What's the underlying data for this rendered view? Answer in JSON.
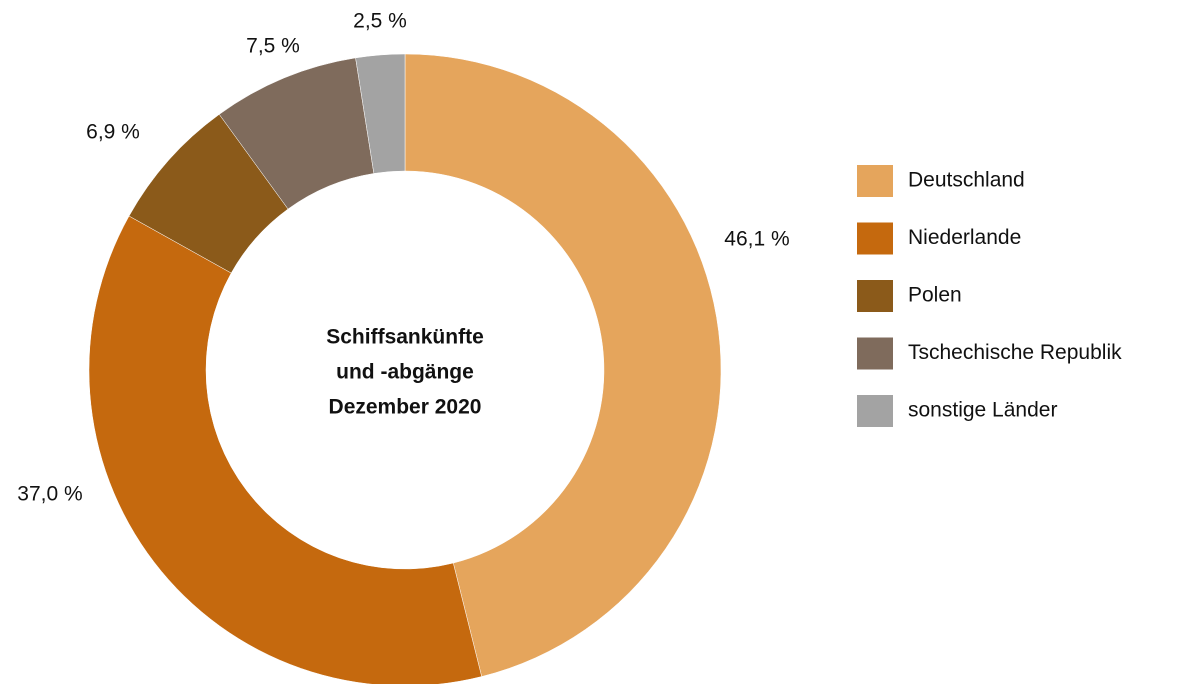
{
  "chart_data": {
    "type": "donut",
    "title": [
      "Schiffsankünfte",
      "und -abgänge",
      "Dezember 2020"
    ],
    "categories": [
      "Deutschland",
      "Niederlande",
      "Polen",
      "Tschechische Republik",
      "sonstige Länder"
    ],
    "values": [
      46.1,
      37.0,
      6.9,
      7.5,
      2.5
    ],
    "value_labels": [
      "46,1 %",
      "37,0 %",
      "6,9 %",
      "7,5 %",
      "2,5 %"
    ],
    "colors": [
      "#e5a55c",
      "#c5690e",
      "#8b5a1a",
      "#7f6b5c",
      "#a3a3a3"
    ],
    "legend": "right"
  }
}
